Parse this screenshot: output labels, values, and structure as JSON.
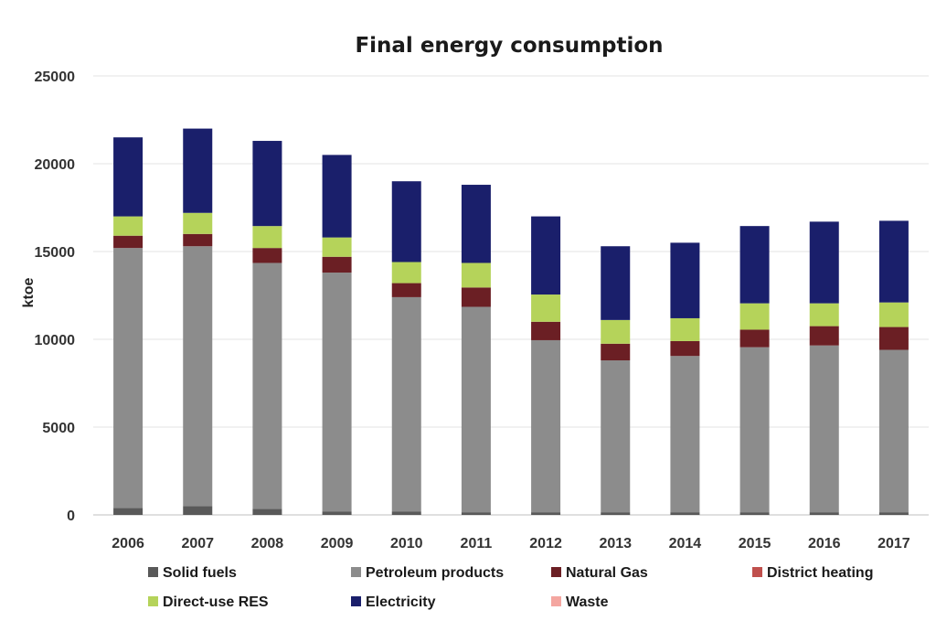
{
  "chart_data": {
    "type": "bar",
    "stacked": true,
    "title": "Final energy consumption",
    "xlabel": "",
    "ylabel": "ktoe",
    "ylim": [
      0,
      25000
    ],
    "yticks": [
      0,
      5000,
      10000,
      15000,
      20000,
      25000
    ],
    "grid": true,
    "legend_position": "bottom",
    "categories": [
      "2006",
      "2007",
      "2008",
      "2009",
      "2010",
      "2011",
      "2012",
      "2013",
      "2014",
      "2015",
      "2016",
      "2017"
    ],
    "series": [
      {
        "name": "Solid fuels",
        "color": "#595959",
        "values": [
          400,
          500,
          350,
          200,
          200,
          150,
          150,
          150,
          150,
          150,
          150,
          150
        ]
      },
      {
        "name": "Petroleum products",
        "color": "#8c8c8c",
        "values": [
          14800,
          14800,
          14000,
          13600,
          12200,
          11700,
          9800,
          8650,
          8900,
          9400,
          9500,
          9250
        ]
      },
      {
        "name": "Natural Gas",
        "color": "#6b1f24",
        "values": [
          700,
          700,
          850,
          900,
          800,
          1100,
          1050,
          950,
          850,
          1000,
          1100,
          1300
        ]
      },
      {
        "name": "District heating",
        "color": "#c0504d",
        "values": [
          0,
          0,
          0,
          0,
          0,
          0,
          0,
          0,
          0,
          0,
          0,
          0
        ]
      },
      {
        "name": "Direct-use RES",
        "color": "#b5d35a",
        "values": [
          1100,
          1200,
          1250,
          1100,
          1200,
          1400,
          1550,
          1350,
          1300,
          1500,
          1300,
          1400
        ]
      },
      {
        "name": "Electricity",
        "color": "#1a1f6b",
        "values": [
          4500,
          4800,
          4850,
          4700,
          4600,
          4450,
          4450,
          4200,
          4300,
          4400,
          4650,
          4650
        ]
      },
      {
        "name": "Waste",
        "color": "#f4a6a0",
        "values": [
          0,
          0,
          0,
          0,
          0,
          0,
          0,
          0,
          0,
          0,
          0,
          0
        ]
      }
    ]
  }
}
